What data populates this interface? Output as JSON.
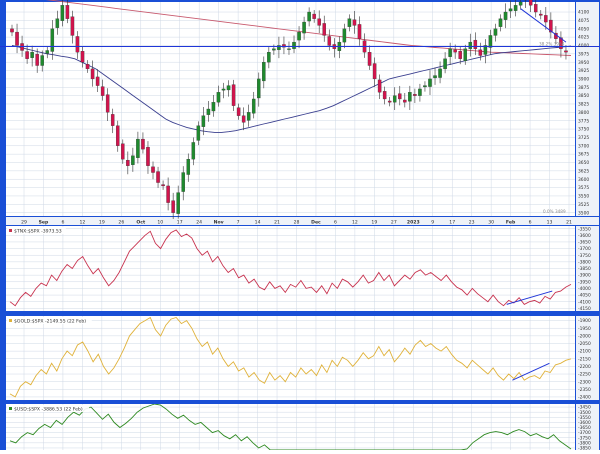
{
  "colors": {
    "frame": "#1a4fd6",
    "panel_bg": "#ffffff",
    "scale_bg": "#eef2f8",
    "grid": "#cfd8e6",
    "candle_up": "#1f8a2e",
    "candle_down": "#d1144d",
    "ma50": "#3a3f8f",
    "ma200": "#c85a6e",
    "hline": "#2036d8",
    "trend": "#2036d8",
    "tnx": "#c8334f",
    "gold": "#e0b23a",
    "usd": "#2f8a22",
    "label_text": "#333333"
  },
  "chart_data": [
    {
      "type": "candlestick",
      "title": "",
      "x_tick_labels": [
        "29",
        "Sep",
        "6",
        "12",
        "19",
        "26",
        "Oct",
        "10",
        "17",
        "24",
        "Nov",
        "7",
        "14",
        "21",
        "28",
        "Dec",
        "6",
        "12",
        "19",
        "27",
        "2023",
        "9",
        "17",
        "23",
        "30",
        "Feb",
        "6",
        "13",
        "21"
      ],
      "y_tick_labels": [
        "4100",
        "4075",
        "4050",
        "4025",
        "4000",
        "3975",
        "3950",
        "3925",
        "3900",
        "3875",
        "3850",
        "3825",
        "3800",
        "3775",
        "3750",
        "3725",
        "3700",
        "3675",
        "3650",
        "3625",
        "3600",
        "3575",
        "3550",
        "3525",
        "3500"
      ],
      "ylim": [
        3490,
        4130
      ],
      "grid": true,
      "annotations": [
        "38.2% 3964",
        "0.0% 3489"
      ],
      "horizontal_line_level": 3997,
      "closes": [
        4040,
        4000,
        3985,
        3960,
        3980,
        3940,
        3970,
        3985,
        4050,
        4080,
        4120,
        4080,
        4030,
        3980,
        3950,
        3930,
        3900,
        3880,
        3850,
        3800,
        3760,
        3700,
        3660,
        3640,
        3670,
        3720,
        3690,
        3640,
        3620,
        3590,
        3580,
        3530,
        3500,
        3560,
        3620,
        3660,
        3710,
        3760,
        3790,
        3810,
        3830,
        3860,
        3870,
        3880,
        3820,
        3790,
        3770,
        3800,
        3840,
        3900,
        3950,
        3980,
        3990,
        4000,
        3995,
        3990,
        4010,
        4040,
        4070,
        4100,
        4080,
        4060,
        4030,
        4000,
        3990,
        4010,
        4050,
        4080,
        4060,
        4020,
        3980,
        3940,
        3900,
        3860,
        3840,
        3830,
        3850,
        3840,
        3830,
        3860,
        3850,
        3870,
        3880,
        3900,
        3910,
        3930,
        3960,
        3990,
        3980,
        3960,
        3990,
        4010,
        3990,
        3970,
        4000,
        4030,
        4050,
        4080,
        4100,
        4110,
        4120,
        4130,
        4150,
        4120,
        4100,
        4090,
        4070,
        4040,
        4020,
        3990,
        3980
      ],
      "ma50": [
        4000,
        3995,
        3990,
        3985,
        3980,
        3975,
        3972,
        3968,
        3965,
        3960,
        3950,
        3940,
        3930,
        3915,
        3900,
        3885,
        3870,
        3855,
        3840,
        3825,
        3810,
        3795,
        3780,
        3770,
        3762,
        3755,
        3750,
        3745,
        3742,
        3740,
        3740,
        3742,
        3745,
        3750,
        3755,
        3760,
        3765,
        3770,
        3775,
        3780,
        3785,
        3790,
        3795,
        3800,
        3805,
        3812,
        3820,
        3830,
        3840,
        3850,
        3860,
        3870,
        3880,
        3890,
        3900,
        3905,
        3910,
        3915,
        3920,
        3925,
        3930,
        3935,
        3940,
        3945,
        3950,
        3955,
        3960,
        3965,
        3970,
        3975,
        3978,
        3980,
        3982,
        3984,
        3986,
        3988,
        3990,
        3992,
        3994,
        3996,
        3998
      ],
      "ma200": [
        4150,
        4147,
        4144,
        4141,
        4138,
        4135,
        4132,
        4129,
        4126,
        4123,
        4120,
        4117,
        4114,
        4111,
        4108,
        4105,
        4102,
        4099,
        4096,
        4093,
        4090,
        4087,
        4084,
        4081,
        4078,
        4075,
        4072,
        4069,
        4066,
        4063,
        4060,
        4057,
        4054,
        4051,
        4048,
        4045,
        4042,
        4039,
        4036,
        4033,
        4030,
        4027,
        4024,
        4021,
        4018,
        4015,
        4012,
        4009,
        4006,
        4003,
        4000,
        3998,
        3996,
        3994,
        3992,
        3990,
        3988,
        3986,
        3984,
        3982,
        3980,
        3979,
        3978,
        3977,
        3976,
        3975,
        3974,
        3973,
        3972,
        3971,
        3970
      ]
    },
    {
      "type": "line",
      "label": "$TNX:$SPX -3973.53",
      "y_tick_labels": [
        "-3550",
        "-3600",
        "-3650",
        "-3700",
        "-3750",
        "-3800",
        "-3850",
        "-3900",
        "-3950",
        "-4000",
        "-4050",
        "-4100",
        "-4150"
      ],
      "ylim": [
        -4170,
        -3530
      ],
      "series": [
        {
          "values": [
            -4100,
            -4130,
            -4070,
            -4030,
            -4060,
            -4000,
            -3960,
            -3980,
            -3900,
            -3940,
            -3870,
            -3820,
            -3850,
            -3790,
            -3760,
            -3830,
            -3890,
            -3850,
            -3920,
            -3980,
            -3940,
            -3880,
            -3800,
            -3720,
            -3680,
            -3640,
            -3600,
            -3570,
            -3660,
            -3700,
            -3630,
            -3580,
            -3560,
            -3610,
            -3590,
            -3620,
            -3700,
            -3750,
            -3720,
            -3800,
            -3760,
            -3830,
            -3880,
            -3850,
            -3920,
            -3900,
            -3960,
            -3930,
            -3990,
            -4010,
            -3950,
            -4000,
            -3980,
            -4030,
            -3970,
            -3990,
            -3940,
            -4000,
            -3990,
            -4030,
            -3980,
            -4040,
            -3960,
            -4000,
            -3930,
            -3950,
            -3990,
            -3950,
            -3900,
            -3960,
            -3940,
            -3880,
            -3940,
            -3900,
            -3980,
            -3940,
            -3900,
            -3930,
            -3880,
            -3860,
            -3900,
            -3880,
            -3910,
            -3940,
            -3900,
            -3950,
            -3990,
            -4010,
            -4050,
            -4000,
            -4040,
            -4070,
            -4100,
            -4050,
            -4100,
            -4130,
            -4090,
            -4110,
            -4070,
            -4120,
            -4100,
            -4090,
            -4110,
            -4060,
            -4080,
            -4030,
            -4020,
            -3990,
            -3970
          ]
        }
      ]
    },
    {
      "type": "line",
      "label": "$GOLD:$SPX -2149.55 (22 Feb)",
      "y_tick_labels": [
        "-1900",
        "-1950",
        "-2000",
        "-2050",
        "-2100",
        "-2150",
        "-2200",
        "-2250",
        "-2300",
        "-2350",
        "-2400"
      ],
      "ylim": [
        -2420,
        -1870
      ],
      "series": [
        {
          "values": [
            -2380,
            -2400,
            -2330,
            -2300,
            -2320,
            -2260,
            -2220,
            -2250,
            -2180,
            -2230,
            -2150,
            -2100,
            -2130,
            -2060,
            -2040,
            -2100,
            -2170,
            -2120,
            -2200,
            -2250,
            -2210,
            -2150,
            -2080,
            -2000,
            -1960,
            -1920,
            -1900,
            -1880,
            -1960,
            -2000,
            -1930,
            -1890,
            -1880,
            -1920,
            -1900,
            -1950,
            -2020,
            -2070,
            -2040,
            -2120,
            -2080,
            -2150,
            -2200,
            -2170,
            -2230,
            -2210,
            -2270,
            -2240,
            -2290,
            -2310,
            -2240,
            -2290,
            -2260,
            -2300,
            -2240,
            -2270,
            -2210,
            -2250,
            -2220,
            -2260,
            -2190,
            -2240,
            -2160,
            -2200,
            -2140,
            -2160,
            -2200,
            -2160,
            -2110,
            -2150,
            -2130,
            -2070,
            -2130,
            -2090,
            -2170,
            -2130,
            -2080,
            -2120,
            -2060,
            -2030,
            -2070,
            -2050,
            -2080,
            -2100,
            -2070,
            -2120,
            -2160,
            -2180,
            -2210,
            -2160,
            -2190,
            -2220,
            -2250,
            -2210,
            -2260,
            -2290,
            -2250,
            -2280,
            -2240,
            -2290,
            -2270,
            -2260,
            -2280,
            -2230,
            -2240,
            -2190,
            -2180,
            -2160,
            -2150
          ]
        }
      ]
    },
    {
      "type": "line",
      "label": "$USD:$SPX -3886.53 (22 Feb)",
      "y_tick_labels": [
        "-3450",
        "-3500",
        "-3550",
        "-3600",
        "-3650",
        "-3700",
        "-3750",
        "-3800",
        "-3850"
      ],
      "ylim": [
        -3870,
        -3420
      ],
      "series": [
        {
          "values": [
            -3780,
            -3800,
            -3740,
            -3700,
            -3720,
            -3660,
            -3620,
            -3650,
            -3580,
            -3620,
            -3550,
            -3500,
            -3530,
            -3470,
            -3450,
            -3510,
            -3570,
            -3520,
            -3600,
            -3650,
            -3610,
            -3560,
            -3500,
            -3460,
            -3440,
            -3420,
            -3430,
            -3470,
            -3520,
            -3560,
            -3530,
            -3580,
            -3620,
            -3600,
            -3650,
            -3700,
            -3680,
            -3730,
            -3760,
            -3720,
            -3780,
            -3740,
            -3800,
            -3850,
            -3820,
            -3870,
            -3870,
            -3870,
            -3870,
            -3870,
            -3870,
            -3870,
            -3870,
            -3870,
            -3870,
            -3870,
            -3870,
            -3870,
            -3870,
            -3870,
            -3870,
            -3870,
            -3870,
            -3870,
            -3870,
            -3870,
            -3870,
            -3870,
            -3870,
            -3870,
            -3870,
            -3870,
            -3870,
            -3870,
            -3870,
            -3870,
            -3870,
            -3870,
            -3870,
            -3860,
            -3800,
            -3760,
            -3720,
            -3700,
            -3690,
            -3700,
            -3720,
            -3690,
            -3670,
            -3690,
            -3730,
            -3710,
            -3740,
            -3760,
            -3720,
            -3780,
            -3820,
            -3860
          ]
        }
      ]
    }
  ]
}
